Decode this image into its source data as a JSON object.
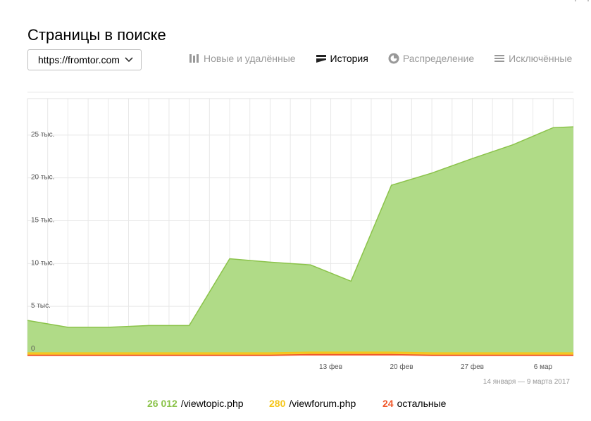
{
  "page": {
    "title": "Страницы в поиске"
  },
  "site_select": {
    "value": "https://fromtor.com"
  },
  "tabs": [
    {
      "label": "Новые и удалённые",
      "icon": "bars-icon",
      "active": false
    },
    {
      "label": "История",
      "icon": "layers-icon",
      "active": true
    },
    {
      "label": "Распределение",
      "icon": "pie-icon",
      "active": false
    },
    {
      "label": "Исключённые",
      "icon": "stack-icon",
      "active": false
    }
  ],
  "chart_data": {
    "type": "area",
    "x": [
      "2017-01-14",
      "2017-01-18",
      "2017-01-22",
      "2017-01-26",
      "2017-01-30",
      "2017-02-03",
      "2017-02-07",
      "2017-02-11",
      "2017-02-15",
      "2017-02-19",
      "2017-02-23",
      "2017-02-27",
      "2017-03-03",
      "2017-03-07",
      "2017-03-09"
    ],
    "x_tick_labels": [
      "13 фев",
      "20 фев",
      "27 фев",
      "6 мар"
    ],
    "y_tick_labels": [
      "0",
      "5 тыс.",
      "10 тыс.",
      "15 тыс.",
      "20 тыс.",
      "25 тыс."
    ],
    "ylim": [
      0,
      30000
    ],
    "grid": true,
    "period": "14 января — 9 марта 2017",
    "series": [
      {
        "name": "/viewtopic.php",
        "total": "26 012",
        "color": "#8bc34a",
        "fill": "#b0db87",
        "values": [
          3800,
          3000,
          3000,
          3200,
          3200,
          11000,
          10600,
          10200,
          8300,
          19500,
          21000,
          22700,
          24300,
          26300,
          26400
        ]
      },
      {
        "name": "/viewforum.php",
        "total": "280",
        "color": "#f5c518",
        "values": [
          280,
          280,
          280,
          280,
          280,
          280,
          280,
          280,
          280,
          280,
          280,
          280,
          280,
          280,
          280
        ]
      },
      {
        "name": "остальные",
        "total": "24",
        "color": "#f0582b",
        "values": [
          20,
          20,
          20,
          20,
          20,
          20,
          20,
          100,
          100,
          100,
          20,
          20,
          20,
          20,
          20
        ]
      }
    ]
  }
}
